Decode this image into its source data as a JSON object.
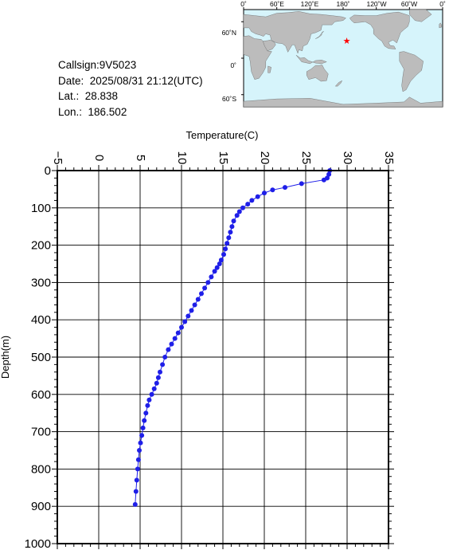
{
  "info": {
    "callsign": "Callsign:9V5023",
    "date": "Date:  2025/08/31 21:12(UTC)",
    "lat": "Lat.:  28.838",
    "lon": "Lon.:  186.502"
  },
  "map": {
    "top_labels": [
      "0˚",
      "60˚E",
      "120˚E",
      "180˚",
      "120˚W",
      "60˚W",
      "0˚"
    ],
    "side_labels": [
      "60˚N",
      "0˚",
      "60˚S"
    ],
    "marker": {
      "lat": 28.838,
      "lon": 186.502,
      "symbol": "★",
      "color": "#ff0000"
    },
    "ocean_color": "#d6f4fb",
    "land_color": "#bcbcbc"
  },
  "chart_data": {
    "type": "line",
    "xlabel": "Temperature(C)",
    "ylabel": "Depth(m)",
    "xlim": [
      -5,
      35
    ],
    "ylim": [
      1000,
      0
    ],
    "x_ticks": [
      "−5",
      "0",
      "5",
      "10",
      "15",
      "20",
      "25",
      "30",
      "35"
    ],
    "y_ticks": [
      "0",
      "100",
      "200",
      "300",
      "400",
      "500",
      "600",
      "700",
      "800",
      "900",
      "1000"
    ],
    "grid": true,
    "series_color": "#1f1fe8",
    "series": [
      {
        "temperature": [
          27.9,
          27.8,
          27.6,
          27.2,
          24.5,
          22.5,
          21.0,
          20.0,
          19.2,
          18.5,
          18.0,
          17.4,
          17.0,
          16.7,
          16.3,
          16.1,
          15.9,
          15.7,
          15.5,
          15.3,
          15.1,
          14.8,
          14.6,
          14.3,
          14.0,
          13.6,
          13.2,
          12.8,
          12.4,
          12.0,
          11.6,
          11.2,
          10.8,
          10.4,
          10.0,
          9.6,
          9.2,
          8.8,
          8.4,
          8.0,
          7.7,
          7.4,
          7.2,
          7.0,
          6.7,
          6.4,
          6.1,
          5.9,
          5.7,
          5.5,
          5.35,
          5.2,
          5.05,
          4.9,
          4.8,
          4.7,
          4.6,
          4.5,
          4.4
        ],
        "depth": [
          0,
          10,
          20,
          25,
          35,
          45,
          52,
          60,
          70,
          80,
          90,
          100,
          110,
          120,
          135,
          150,
          165,
          180,
          195,
          210,
          225,
          240,
          250,
          260,
          270,
          285,
          300,
          315,
          330,
          345,
          360,
          375,
          390,
          405,
          420,
          435,
          450,
          465,
          480,
          500,
          520,
          540,
          555,
          570,
          585,
          600,
          615,
          630,
          650,
          670,
          690,
          710,
          730,
          750,
          775,
          800,
          830,
          860,
          895
        ]
      }
    ]
  }
}
